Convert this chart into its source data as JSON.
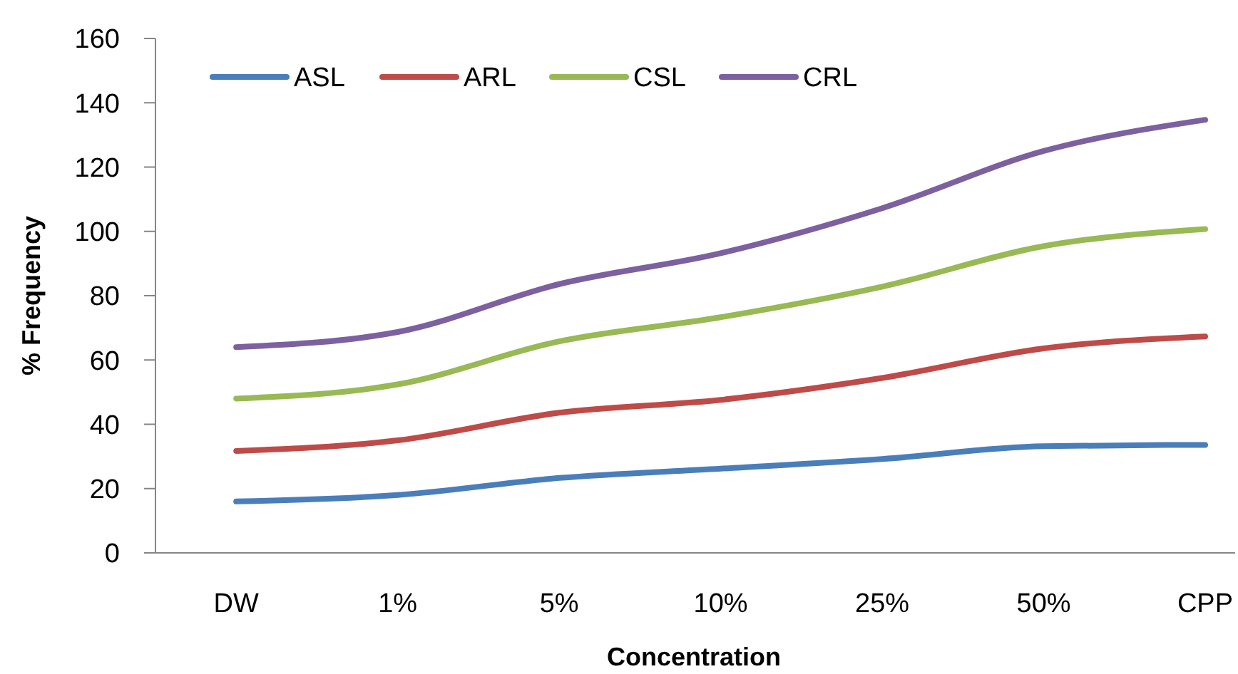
{
  "chart_data": {
    "type": "line",
    "xlabel": "Concentration",
    "ylabel": "% Frequency",
    "categories": [
      "DW",
      "1%",
      "5%",
      "10%",
      "25%",
      "50%",
      "CPP"
    ],
    "series": [
      {
        "name": "ASL",
        "color": "#4a7ebb",
        "values": [
          16,
          18,
          23.3,
          26.2,
          29.2,
          33.2,
          33.6
        ]
      },
      {
        "name": "ARL",
        "color": "#be4b48",
        "values": [
          31.7,
          35,
          43.6,
          47.6,
          54.4,
          63.6,
          67.3
        ]
      },
      {
        "name": "CSL",
        "color": "#98b954",
        "values": [
          48,
          52.4,
          65.8,
          73.3,
          82.8,
          95.4,
          100.7
        ]
      },
      {
        "name": "CRL",
        "color": "#7d60a0",
        "values": [
          64,
          68.7,
          83.6,
          93.2,
          107.2,
          125,
          134.7
        ]
      }
    ],
    "ylim": [
      0,
      160
    ],
    "yticks": [
      0,
      20,
      40,
      60,
      80,
      100,
      120,
      140,
      160
    ],
    "legend": "top left"
  }
}
